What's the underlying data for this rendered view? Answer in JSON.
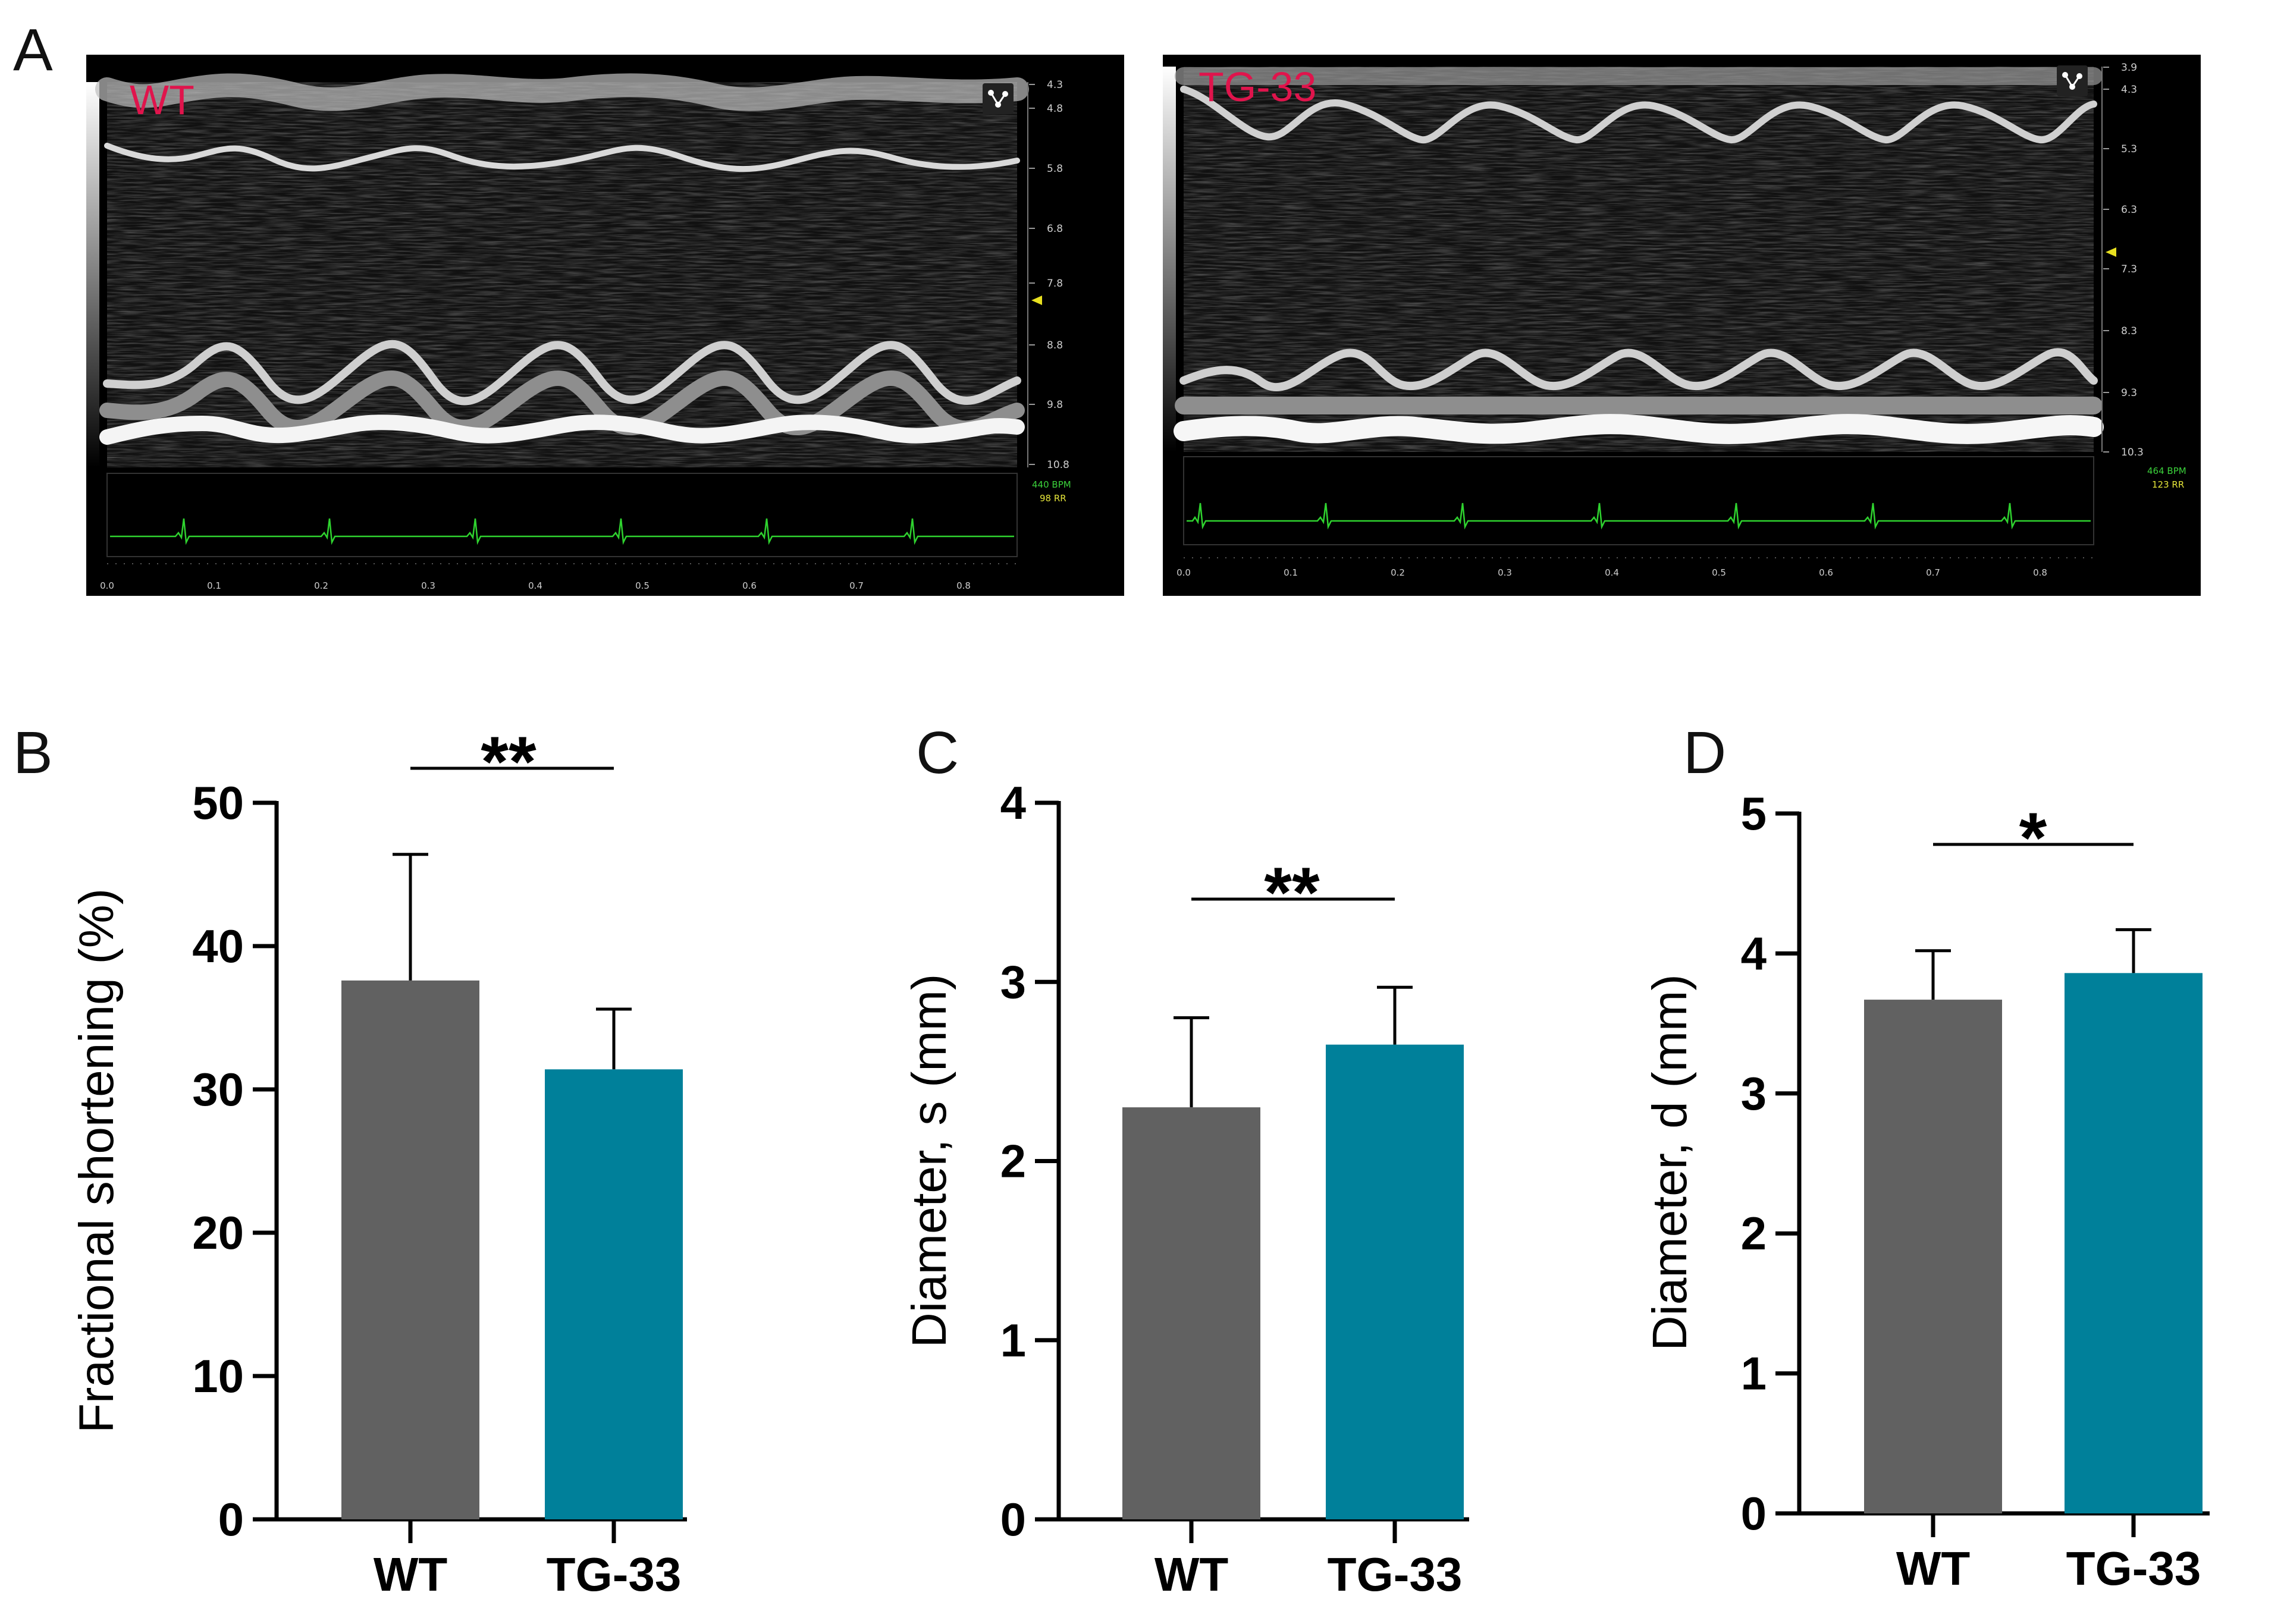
{
  "panel_labels": {
    "a": "A",
    "b": "B",
    "c": "C",
    "d": "D"
  },
  "colors": {
    "wt": "#616161",
    "tg": "#00809a",
    "ecg": "#2fd32f",
    "label": "#e0144c",
    "marker": "#e8e020"
  },
  "ultrasound": [
    {
      "label": "WT",
      "depth_ticks": [
        "4.3",
        "4.8",
        "5.8",
        "6.8",
        "7.8",
        "8.8",
        "9.8",
        "10.8"
      ],
      "time_ticks": [
        "0.0",
        "0.1",
        "0.2",
        "0.3",
        "0.4",
        "0.5",
        "0.6",
        "0.7",
        "0.8"
      ],
      "bpm": "440 BPM",
      "rr": "98 RR"
    },
    {
      "label": "TG-33",
      "depth_ticks": [
        "3.9",
        "4.3",
        "5.3",
        "6.3",
        "7.3",
        "8.3",
        "9.3",
        "10.3"
      ],
      "time_ticks": [
        "0.0",
        "0.1",
        "0.2",
        "0.3",
        "0.4",
        "0.5",
        "0.6",
        "0.7",
        "0.8"
      ],
      "bpm": "464 BPM",
      "rr": "123 RR"
    }
  ],
  "chart_data": [
    {
      "type": "bar",
      "panel": "B",
      "categories": [
        "WT",
        "TG-33"
      ],
      "values": [
        37.6,
        31.4
      ],
      "errors": [
        8.8,
        4.2
      ],
      "ylabel": "Fractional shortening (%)",
      "ylim": [
        0,
        50
      ],
      "yticks": [
        "0",
        "10",
        "20",
        "30",
        "40",
        "50"
      ],
      "significance": "**"
    },
    {
      "type": "bar",
      "panel": "C",
      "categories": [
        "WT",
        "TG-33"
      ],
      "values": [
        2.3,
        2.65
      ],
      "errors": [
        0.5,
        0.32
      ],
      "ylabel": "Diameter, s (mm)",
      "ylim": [
        0,
        4
      ],
      "yticks": [
        "0",
        "1",
        "2",
        "3",
        "4"
      ],
      "significance": "**"
    },
    {
      "type": "bar",
      "panel": "D",
      "categories": [
        "WT",
        "TG-33"
      ],
      "values": [
        3.67,
        3.86
      ],
      "errors": [
        0.35,
        0.31
      ],
      "ylabel": "Diameter, d (mm)",
      "ylim": [
        0,
        5
      ],
      "yticks": [
        "0",
        "1",
        "2",
        "3",
        "4",
        "5"
      ],
      "significance": "*"
    }
  ]
}
